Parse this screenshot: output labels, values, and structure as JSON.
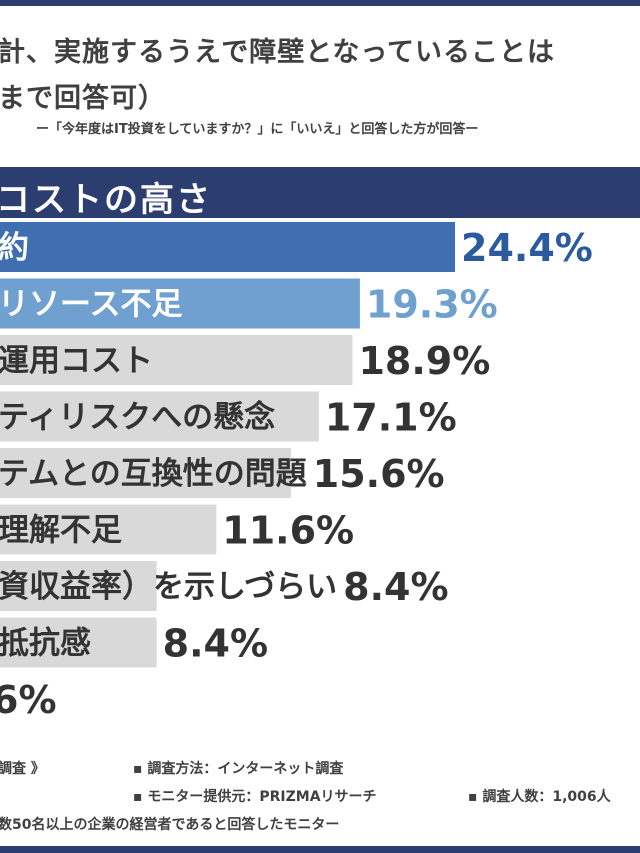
{
  "title_line1": "計、実施するうえで障壁となっていることは",
  "title_line2": "まで回答可）",
  "subtitle": "ー「今年度はIT投資をしていますか？」に「いいえ」と回答した方が回答ー",
  "header": "コストの高さ",
  "colors": {
    "header": "#2c3e70",
    "first": "#3f6fb0",
    "second": "#6fa0cf",
    "rest": "#d9d9d9",
    "first_value": "#2c5a9e",
    "second_value": "#6fa0cf",
    "rest_value": "#333333"
  },
  "chart_data": {
    "type": "bar",
    "orientation": "horizontal",
    "categories": [
      "約",
      "リソース不足",
      "運用コスト",
      "ティリスクへの懸念",
      "テムとの互換性の問題",
      "理解不足",
      "資収益率）を示しづらい",
      "抵抗感",
      ""
    ],
    "values": [
      24.4,
      19.3,
      18.9,
      17.1,
      15.6,
      11.6,
      8.4,
      8.4,
      null
    ],
    "value_labels": [
      "24.4%",
      "19.3%",
      "18.9%",
      "17.1%",
      "15.6%",
      "11.6%",
      "8.4%",
      "8.4%",
      "6%"
    ],
    "xlim": [
      0,
      35
    ]
  },
  "footer": {
    "survey_label": "調査 》",
    "method": "▪ 調査方法：インターネット調査",
    "provider": "▪ モニター提供元：PRIZMAリサーチ",
    "count": "▪ 調査人数：1,006人",
    "target": "数50名以上の企業の経営者であると回答したモニター"
  }
}
